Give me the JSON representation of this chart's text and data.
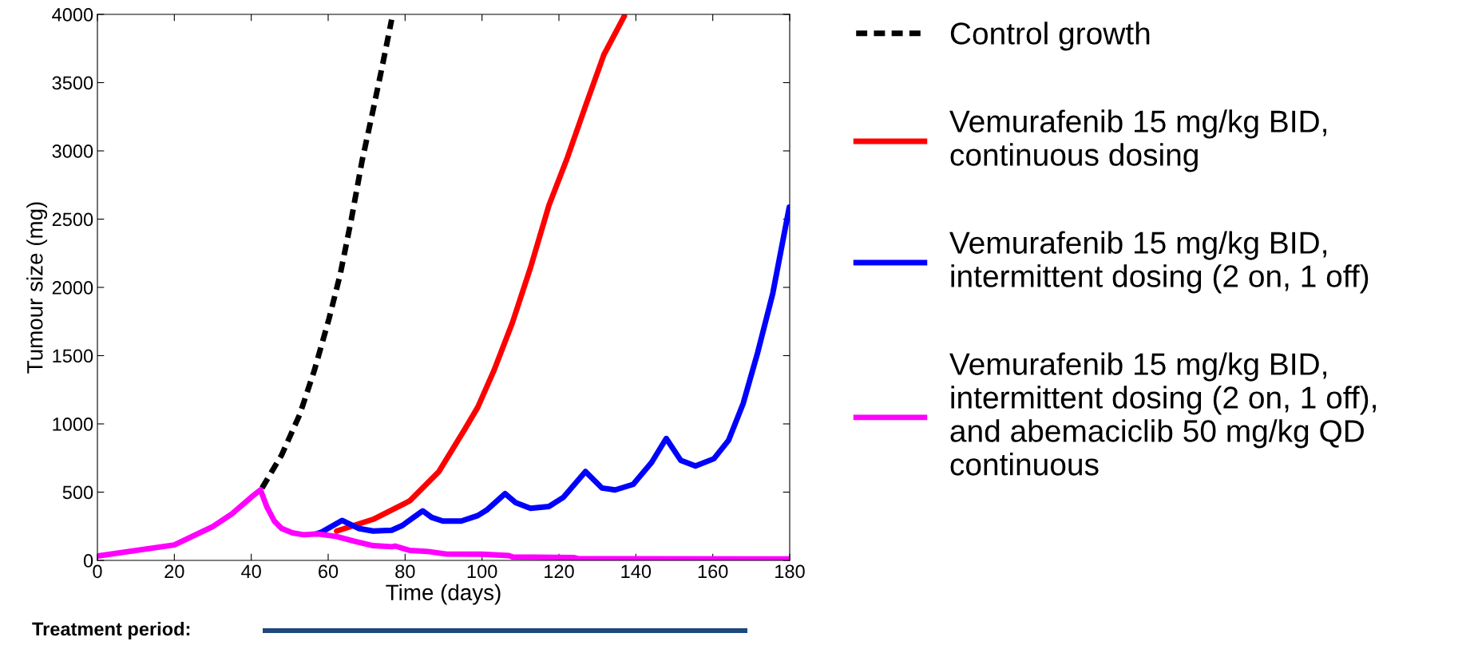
{
  "chart_data": {
    "type": "line",
    "xlabel": "Time (days)",
    "ylabel": "Tumour size (mg)",
    "xlim": [
      0,
      180
    ],
    "xticks": [
      0,
      20,
      40,
      60,
      80,
      100,
      120,
      140,
      160,
      180
    ],
    "ylim": [
      0,
      4000
    ],
    "yticks": [
      0,
      500,
      1000,
      1500,
      2000,
      2500,
      3000,
      3500,
      4000
    ],
    "grid": false,
    "legend": "right",
    "series": [
      {
        "name": "Control growth",
        "color": "#000000",
        "line_style": "dashed",
        "x": [
          42.8,
          47.9,
          52.6,
          56.4,
          60.2,
          63.1,
          66,
          68.8,
          71.7,
          74.1,
          76.5
        ],
        "values": [
          530,
          772,
          1068,
          1391,
          1768,
          2091,
          2495,
          2925,
          3302,
          3625,
          3961
        ]
      },
      {
        "name": "Vemurafenib 15 mg/kg BID,\ncontinuous dosing",
        "color": "#ff0000",
        "line_style": "solid",
        "x": [
          62.2,
          71.7,
          81.2,
          88.8,
          95.5,
          98.9,
          103.1,
          107.9,
          112.6,
          117.4,
          122.2,
          126.9,
          131.7,
          137
        ],
        "values": [
          215,
          301,
          436,
          651,
          960,
          1122,
          1391,
          1741,
          2144,
          2601,
          2951,
          3328,
          3705,
          3987
        ]
      },
      {
        "name": "Vemurafenib 15 mg/kg BID,\nintermittent dosing (2 on, 1 off)",
        "color": "#0000ff",
        "line_style": "solid",
        "x": [
          57,
          58.3,
          63.6,
          67.9,
          71.7,
          76.5,
          79.3,
          82.2,
          84.6,
          86.9,
          89.8,
          94.6,
          98.9,
          101.2,
          106,
          108.8,
          112.6,
          117.4,
          121.2,
          126.9,
          131.2,
          134.6,
          139.3,
          144.1,
          147.9,
          151.7,
          155.5,
          160.3,
          164.1,
          167.9,
          171.7,
          175.6,
          179.9
        ],
        "values": [
          195,
          207,
          293,
          234,
          215,
          221,
          256,
          315,
          363,
          315,
          288,
          288,
          328,
          368,
          489,
          422,
          382,
          395,
          463,
          651,
          530,
          516,
          557,
          718,
          893,
          732,
          691,
          745,
          879,
          1149,
          1525,
          1956,
          2588
        ]
      },
      {
        "name": "Vemurafenib 15 mg/kg BID,\nintermittent dosing (2 on, 1 off),\nand abemaciclib 50 mg/kg QD\ncontinuous",
        "color": "#ff00ff",
        "line_style": "solid",
        "x": [
          0,
          20,
          30,
          35,
          40,
          42.4,
          44,
          46,
          47.9,
          50.7,
          53.6,
          57.4,
          62.2,
          66.9,
          71.7,
          76.5,
          77.4,
          81.2,
          86,
          90.8,
          100,
          107,
          108,
          124,
          125,
          180
        ],
        "values": [
          32,
          113,
          248,
          342,
          463,
          517,
          396,
          288,
          234,
          202,
          188,
          194,
          175,
          140,
          108,
          100,
          105,
          73,
          65,
          46,
          45,
          35,
          25,
          20,
          12,
          10
        ]
      }
    ],
    "annotations": [
      "Treatment period:"
    ]
  }
}
